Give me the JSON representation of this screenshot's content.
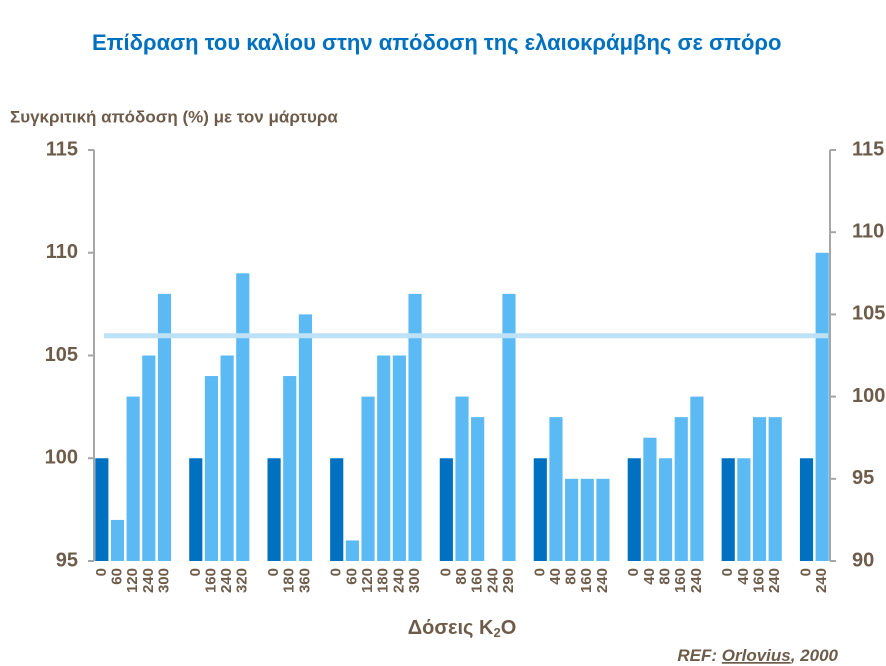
{
  "chart_data": {
    "type": "bar",
    "title": "Επίδραση του καλίου στην απόδοση της ελαιοκράμβης σε σπόρο",
    "y_label": "Συγκριτική απόδοση (%) με τον μάρτυρα",
    "x_label": {
      "text": "Δόσεις K",
      "subscript": "2",
      "suffix": "O"
    },
    "annotation": {
      "prefix": "REF: ",
      "author": "Orlovius",
      "suffix": ", 2000"
    },
    "categories": [
      "0",
      "60",
      "120",
      "240",
      "300",
      null,
      "0",
      "160",
      "240",
      "320",
      null,
      "0",
      "180",
      "360",
      null,
      "0",
      "60",
      "120",
      "180",
      "240",
      "300",
      null,
      "0",
      "80",
      "160",
      "240",
      "290",
      null,
      "0",
      "40",
      "80",
      "160",
      "240",
      null,
      "0",
      "40",
      "80",
      "160",
      "240",
      null,
      "0",
      "40",
      "160",
      "240",
      null,
      "0",
      "240"
    ],
    "values": [
      100,
      97,
      103,
      105,
      108,
      null,
      100,
      104,
      105,
      109,
      null,
      100,
      104,
      107,
      null,
      100,
      96,
      103,
      105,
      105,
      108,
      null,
      100,
      103,
      102,
      null,
      108,
      null,
      100,
      102,
      99,
      99,
      99,
      null,
      100,
      101,
      100,
      102,
      103,
      null,
      100,
      100,
      102,
      102,
      null,
      100,
      110
    ],
    "colors": [
      "#0070c0",
      "#5bb9f3",
      "#5bb9f3",
      "#5bb9f3",
      "#5bb9f3",
      null,
      "#0070c0",
      "#5bb9f3",
      "#5bb9f3",
      "#5bb9f3",
      null,
      "#0070c0",
      "#5bb9f3",
      "#5bb9f3",
      null,
      "#0070c0",
      "#5bb9f3",
      "#5bb9f3",
      "#5bb9f3",
      "#5bb9f3",
      "#5bb9f3",
      null,
      "#0070c0",
      "#5bb9f3",
      "#5bb9f3",
      null,
      "#5bb9f3",
      null,
      "#0070c0",
      "#5bb9f3",
      "#5bb9f3",
      "#5bb9f3",
      "#5bb9f3",
      null,
      "#0070c0",
      "#5bb9f3",
      "#5bb9f3",
      "#5bb9f3",
      "#5bb9f3",
      null,
      "#0070c0",
      "#5bb9f3",
      "#5bb9f3",
      "#5bb9f3",
      null,
      "#0070c0",
      "#5bb9f3"
    ],
    "ylim": [
      95,
      115
    ],
    "yticks": [
      95,
      100,
      105,
      110,
      115
    ],
    "y2lim": [
      90,
      115
    ],
    "y2ticks": [
      90,
      95,
      100,
      105,
      110,
      115
    ],
    "reference_line": {
      "value": 103.7,
      "axis": "y2",
      "color": "#bde2f8"
    },
    "grid": false
  }
}
